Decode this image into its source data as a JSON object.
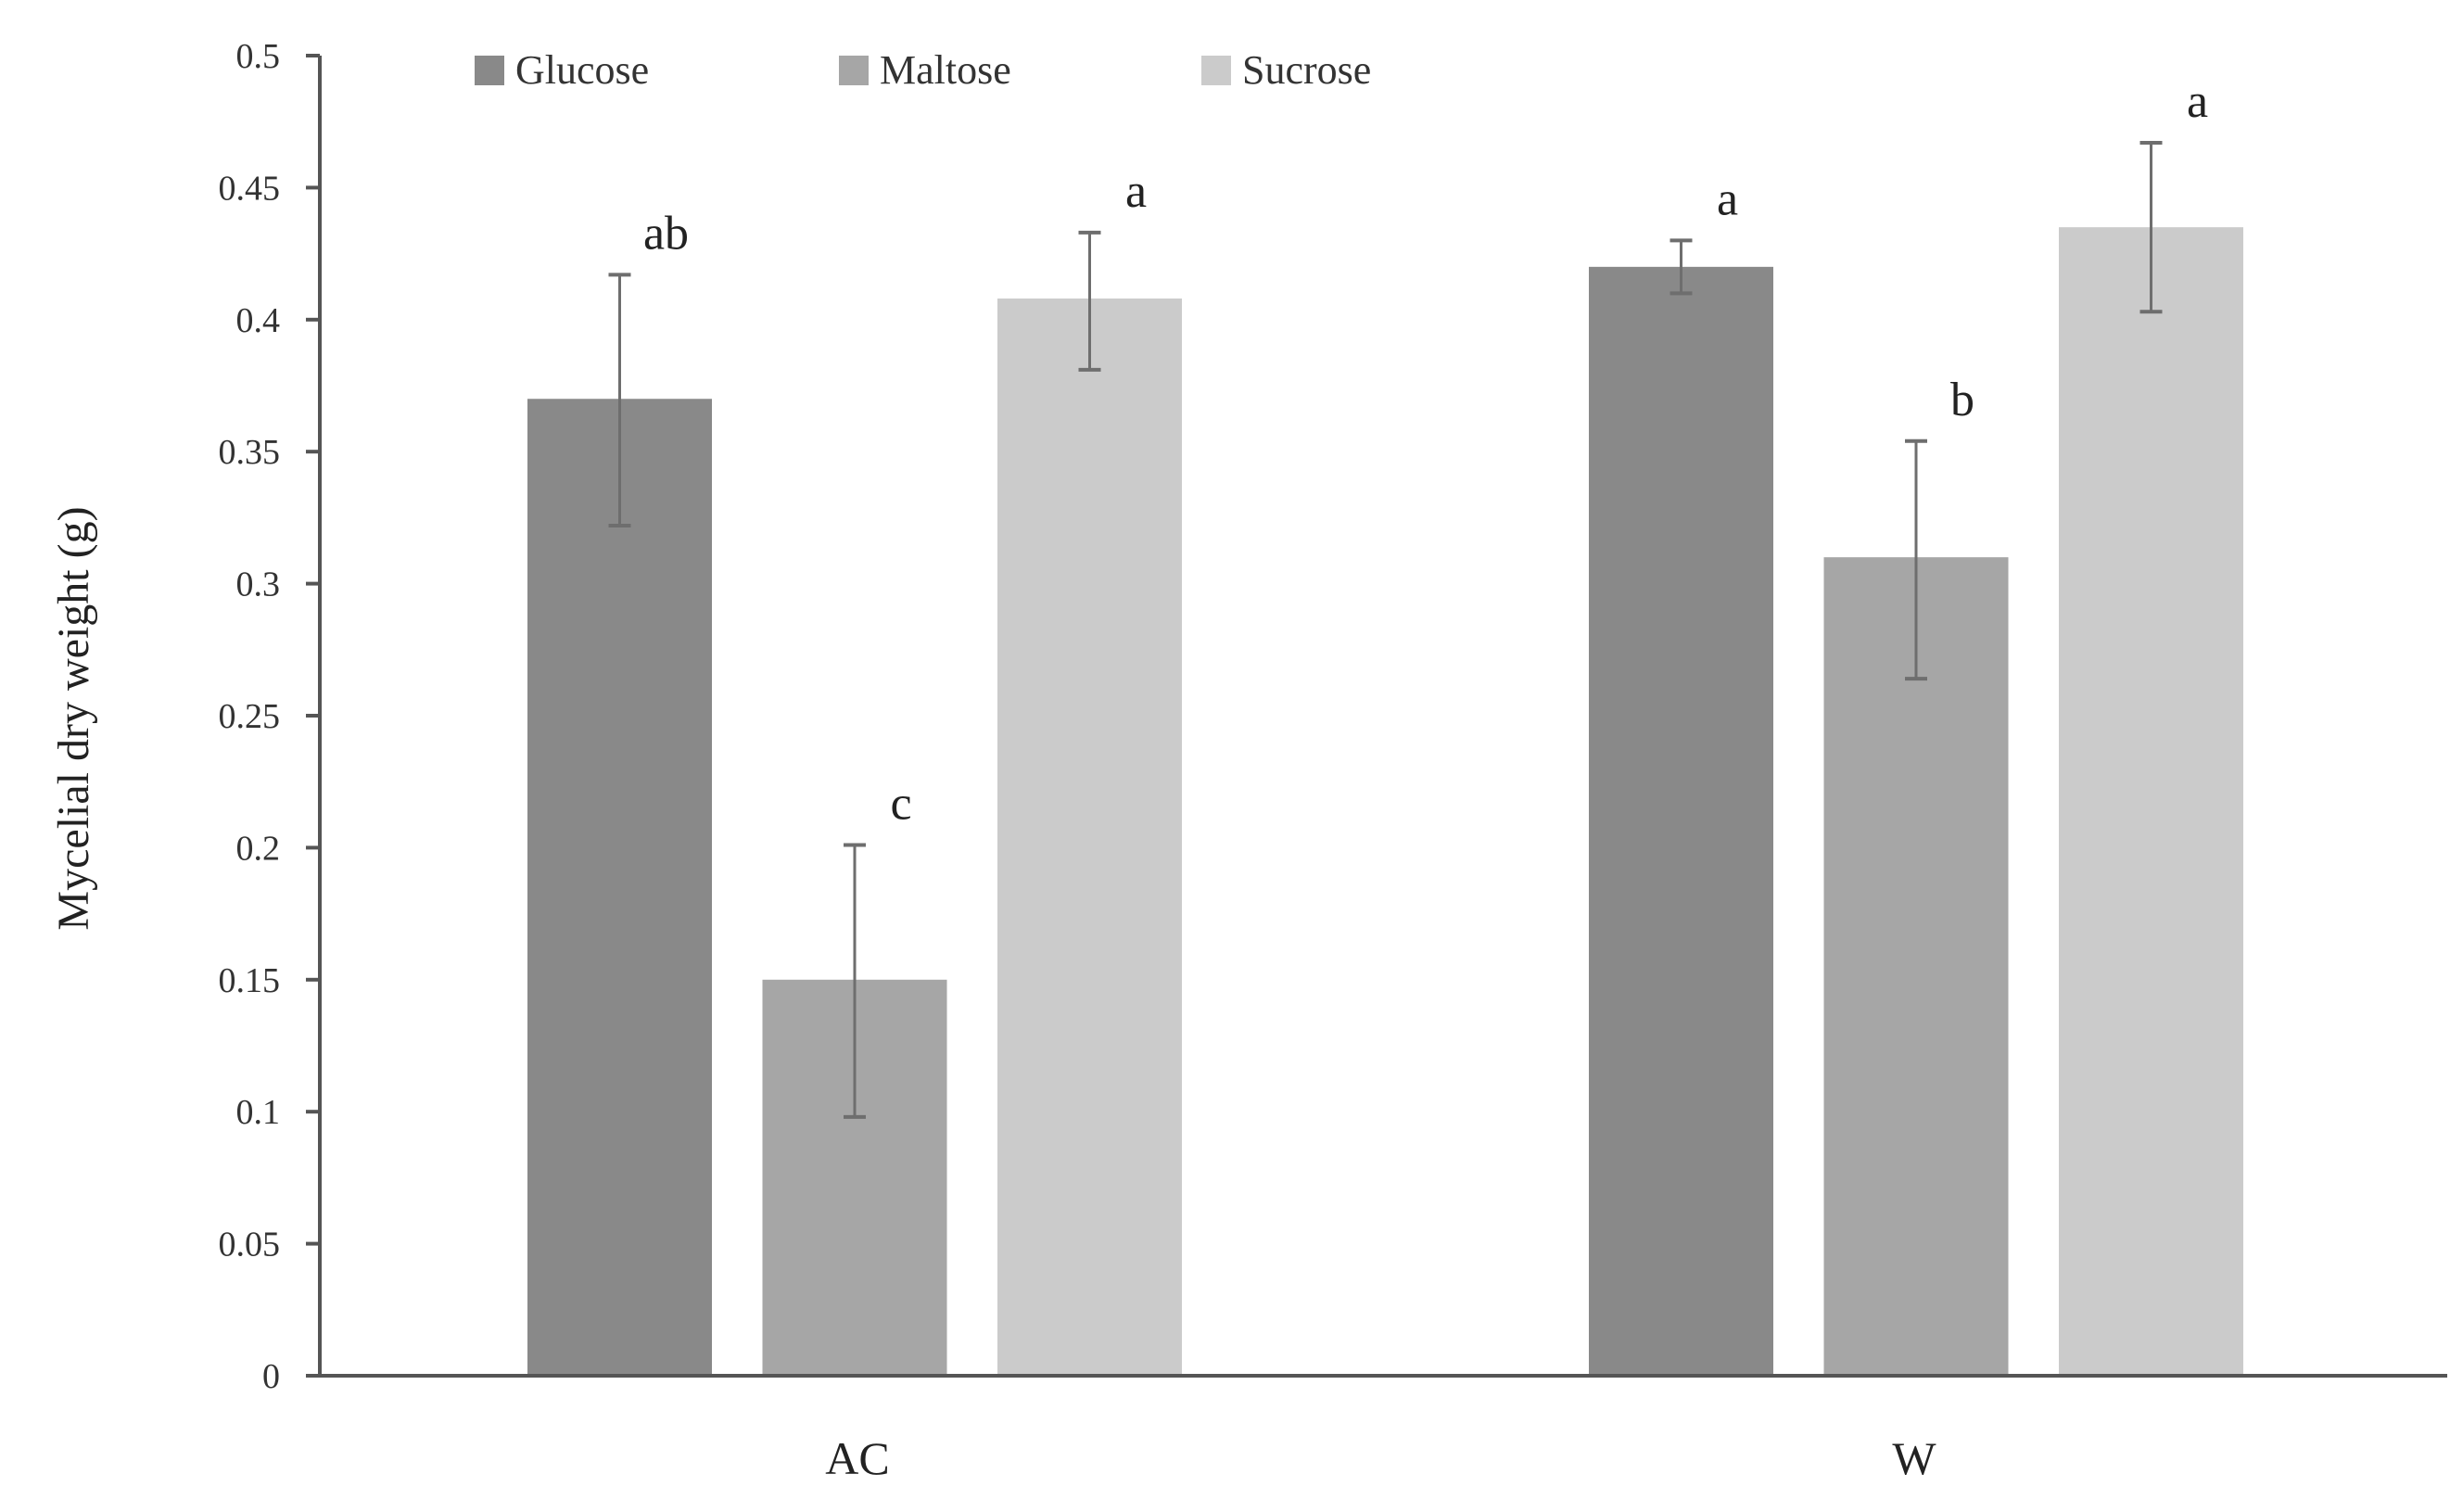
{
  "chart_data": {
    "type": "bar",
    "title": "",
    "xlabel": "",
    "ylabel": "Mycelial dry weight (g)",
    "ylim": [
      0,
      0.5
    ],
    "yticks": [
      "0",
      "0.05",
      "0.1",
      "0.15",
      "0.2",
      "0.25",
      "0.3",
      "0.35",
      "0.4",
      "0.45",
      "0.5"
    ],
    "grid": false,
    "legend_position": "top-left",
    "categories": [
      "AC",
      "W"
    ],
    "series": [
      {
        "name": "Glucose",
        "color": "#898989",
        "values": [
          0.37,
          0.42
        ],
        "error_low": [
          0.322,
          0.41
        ],
        "error_high": [
          0.417,
          0.43
        ],
        "letters": [
          "ab",
          "a"
        ]
      },
      {
        "name": "Maltose",
        "color": "#a6a6a6",
        "values": [
          0.15,
          0.31
        ],
        "error_low": [
          0.098,
          0.264
        ],
        "error_high": [
          0.201,
          0.354
        ],
        "letters": [
          "c",
          "b"
        ]
      },
      {
        "name": "Sucrose",
        "color": "#cbcbcb",
        "values": [
          0.408,
          0.435
        ],
        "error_low": [
          0.381,
          0.403
        ],
        "error_high": [
          0.433,
          0.467
        ],
        "letters": [
          "a",
          "a"
        ]
      }
    ]
  }
}
